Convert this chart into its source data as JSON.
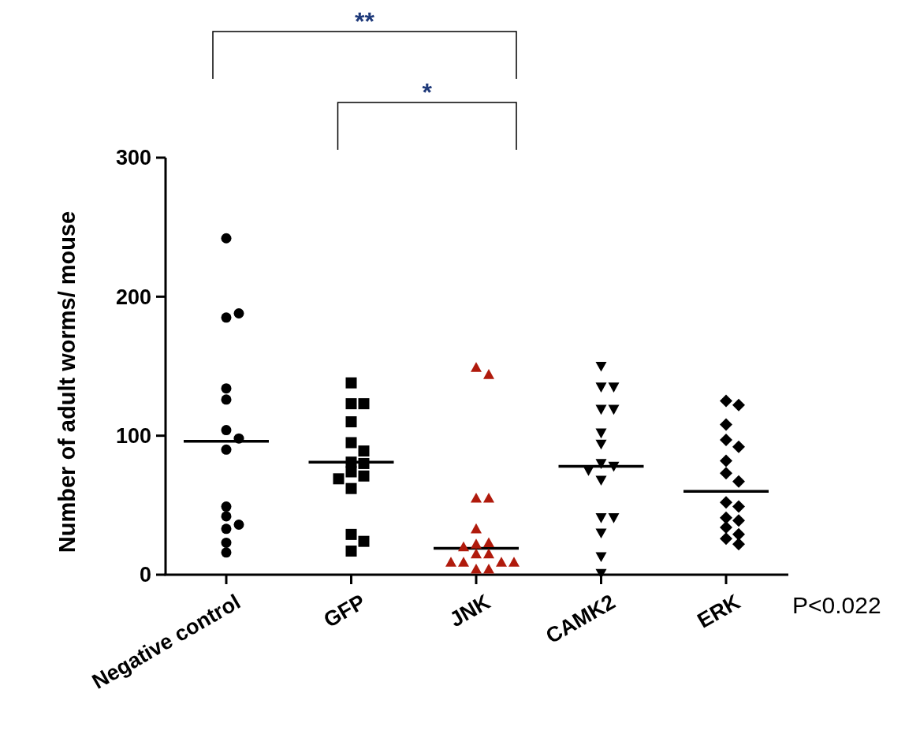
{
  "chart_data": {
    "type": "scatter",
    "ylabel": "Number of adult worms/ mouse",
    "categories": [
      "Negative control",
      "GFP",
      "JNK",
      "CAMK2",
      "ERK"
    ],
    "ylim": [
      0,
      300
    ],
    "yticks": [
      0,
      100,
      200,
      300
    ],
    "grid": false,
    "series": [
      {
        "color": "#000000",
        "marker": "circle",
        "x": [
          "Negative control",
          "Negative control",
          "Negative control",
          "Negative control",
          "Negative control",
          "Negative control",
          "Negative control",
          "Negative control",
          "Negative control",
          "Negative control",
          "Negative control",
          "Negative control",
          "Negative control",
          "Negative control"
        ],
        "values": [
          242,
          185,
          188,
          134,
          126,
          104,
          98,
          90,
          49,
          42,
          36,
          33,
          23,
          16
        ]
      },
      {
        "color": "#000000",
        "marker": "square",
        "x": [
          "GFP",
          "GFP",
          "GFP",
          "GFP",
          "GFP",
          "GFP",
          "GFP",
          "GFP",
          "GFP",
          "GFP",
          "GFP",
          "GFP",
          "GFP",
          "GFP",
          "GFP"
        ],
        "values": [
          138,
          123,
          123,
          110,
          95,
          89,
          81,
          80,
          74,
          71,
          69,
          62,
          29,
          24,
          17
        ]
      },
      {
        "color": "#b01a0c",
        "marker": "triangle",
        "x": [
          "JNK",
          "JNK",
          "JNK",
          "JNK",
          "JNK",
          "JNK",
          "JNK",
          "JNK",
          "JNK",
          "JNK",
          "JNK",
          "JNK",
          "JNK",
          "JNK",
          "JNK",
          "JNK"
        ],
        "values": [
          149,
          144,
          55,
          55,
          33,
          22,
          23,
          20,
          15,
          15,
          9,
          9,
          9,
          9,
          4,
          4
        ]
      },
      {
        "color": "#000000",
        "marker": "triangle-down",
        "x": [
          "CAMK2",
          "CAMK2",
          "CAMK2",
          "CAMK2",
          "CAMK2",
          "CAMK2",
          "CAMK2",
          "CAMK2",
          "CAMK2",
          "CAMK2",
          "CAMK2",
          "CAMK2",
          "CAMK2",
          "CAMK2",
          "CAMK2",
          "CAMK2"
        ],
        "values": [
          150,
          135,
          135,
          119,
          119,
          102,
          94,
          80,
          78,
          75,
          68,
          41,
          41,
          30,
          13,
          1
        ]
      },
      {
        "color": "#000000",
        "marker": "diamond",
        "x": [
          "ERK",
          "ERK",
          "ERK",
          "ERK",
          "ERK",
          "ERK",
          "ERK",
          "ERK",
          "ERK",
          "ERK",
          "ERK",
          "ERK",
          "ERK",
          "ERK",
          "ERK",
          "ERK"
        ],
        "values": [
          125,
          122,
          108,
          97,
          92,
          82,
          73,
          67,
          52,
          49,
          41,
          39,
          34,
          29,
          26,
          22
        ]
      },
      {
        "type": "box",
        "color": "#000000",
        "boxes": [
          {
            "low": 96,
            "q1": 96,
            "median": 96,
            "q3": 96,
            "high": 96
          },
          {
            "low": 81,
            "q1": 81,
            "median": 81,
            "q3": 81,
            "high": 81
          },
          {
            "low": 19,
            "q1": 19,
            "median": 19,
            "q3": 19,
            "high": 19
          },
          {
            "low": 78,
            "q1": 78,
            "median": 78,
            "q3": 78,
            "high": 78
          },
          {
            "low": 60,
            "q1": 60,
            "median": 60,
            "q3": 60,
            "high": 60
          }
        ]
      }
    ],
    "annotations": [
      "**",
      "*",
      "P<0.022"
    ]
  }
}
